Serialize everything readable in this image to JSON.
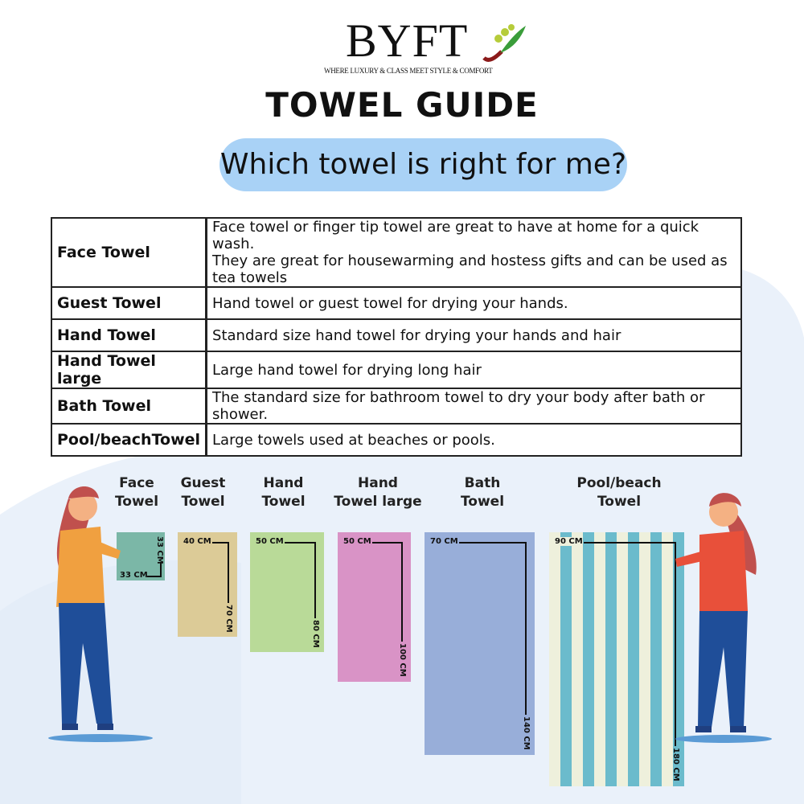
{
  "brand": {
    "name": "BYFT",
    "tagline": "WHERE LUXURY & CLASS MEET STYLE & COMFORT"
  },
  "title": "TOWEL GUIDE",
  "question": "Which towel is right for me?",
  "table": [
    {
      "name": "Face Towel",
      "desc": "Face towel or finger tip towel are great to have at home for a quick wash.",
      "desc2": "They are great for housewarming and hostess gifts and can be used as tea towels"
    },
    {
      "name": "Guest Towel",
      "desc": "Hand towel or guest towel for drying your hands."
    },
    {
      "name": "Hand Towel",
      "desc": "Standard size hand towel for drying your hands and hair"
    },
    {
      "name": "Hand Towel large",
      "desc": "Large hand towel for drying long hair"
    },
    {
      "name": "Bath Towel",
      "desc": "The standard size for bathroom towel to dry your body after bath or shower."
    },
    {
      "name": "Pool/beachTowel",
      "desc": "Large towels used at beaches or pools."
    }
  ],
  "towels": [
    {
      "l1": "Face",
      "l2": "Towel",
      "w": "33 CM",
      "h": "33 CM",
      "color": "#7bb7a7"
    },
    {
      "l1": "Guest",
      "l2": "Towel",
      "w": "40 CM",
      "h": "70 CM",
      "color": "#dccb97"
    },
    {
      "l1": "Hand",
      "l2": "Towel",
      "w": "50 CM",
      "h": "80 CM",
      "color": "#b9da98"
    },
    {
      "l1": "Hand",
      "l2": "Towel large",
      "w": "50 CM",
      "h": "100 CM",
      "color": "#d993c6"
    },
    {
      "l1": "Bath",
      "l2": "Towel",
      "w": "70 CM",
      "h": "140 CM",
      "color": "#98aed9"
    },
    {
      "l1": "Pool/beach",
      "l2": "Towel",
      "w": "90 CM",
      "h": "180 CM",
      "color": "#eef0dc",
      "stripe": "#6bbbcc"
    }
  ]
}
